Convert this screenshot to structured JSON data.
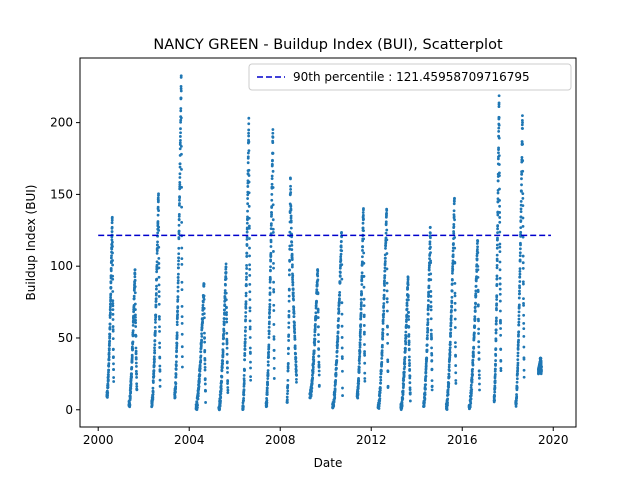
{
  "chart_data": {
    "type": "scatter",
    "title": "NANCY GREEN - Buildup Index (BUI), Scatterplot",
    "xlabel": "Date",
    "ylabel": "Buildup Index (BUI)",
    "xlim": [
      1999.2,
      2021.0
    ],
    "ylim": [
      -12,
      245
    ],
    "x_ticks": [
      2000,
      2004,
      2008,
      2012,
      2016,
      2020
    ],
    "y_ticks": [
      0,
      50,
      100,
      150,
      200
    ],
    "grid": false,
    "legend_position": "top-right",
    "point_color": "#1f77b4",
    "reference_line": {
      "label": "90th percentile : 121.45958709716795",
      "value": 121.45958709716795,
      "x_start": 2000.0,
      "x_end": 2019.9,
      "color": "#0000cc",
      "style": "dashed"
    },
    "seasons": [
      {
        "year": 2000,
        "start": 2000.38,
        "peak_time": 2000.62,
        "end": 2000.68,
        "base": 8,
        "peak": 135
      },
      {
        "year": 2001,
        "start": 2001.35,
        "peak_time": 2001.62,
        "end": 2001.7,
        "base": 2,
        "peak": 99
      },
      {
        "year": 2002,
        "start": 2002.35,
        "peak_time": 2002.65,
        "end": 2002.72,
        "base": 2,
        "peak": 153
      },
      {
        "year": 2003,
        "start": 2003.36,
        "peak_time": 2003.65,
        "end": 2003.7,
        "base": 8,
        "peak": 233
      },
      {
        "year": 2004,
        "start": 2004.3,
        "peak_time": 2004.65,
        "end": 2004.72,
        "base": 0,
        "peak": 89
      },
      {
        "year": 2005,
        "start": 2005.3,
        "peak_time": 2005.62,
        "end": 2005.7,
        "base": 0,
        "peak": 102
      },
      {
        "year": 2006,
        "start": 2006.35,
        "peak_time": 2006.62,
        "end": 2006.7,
        "base": 0,
        "peak": 204
      },
      {
        "year": 2007,
        "start": 2007.38,
        "peak_time": 2007.68,
        "end": 2007.74,
        "base": 2,
        "peak": 197
      },
      {
        "year": 2008,
        "start": 2008.3,
        "peak_time": 2008.45,
        "end": 2008.72,
        "base": 5,
        "peak": 162
      },
      {
        "year": 2009,
        "start": 2009.3,
        "peak_time": 2009.65,
        "end": 2009.72,
        "base": 8,
        "peak": 98
      },
      {
        "year": 2010,
        "start": 2010.3,
        "peak_time": 2010.7,
        "end": 2010.74,
        "base": 0,
        "peak": 125
      },
      {
        "year": 2011,
        "start": 2011.38,
        "peak_time": 2011.66,
        "end": 2011.72,
        "base": 8,
        "peak": 142
      },
      {
        "year": 2012,
        "start": 2012.3,
        "peak_time": 2012.68,
        "end": 2012.74,
        "base": 0,
        "peak": 141
      },
      {
        "year": 2013,
        "start": 2013.3,
        "peak_time": 2013.62,
        "end": 2013.72,
        "base": 0,
        "peak": 93
      },
      {
        "year": 2014,
        "start": 2014.3,
        "peak_time": 2014.6,
        "end": 2014.68,
        "base": 2,
        "peak": 128
      },
      {
        "year": 2015,
        "start": 2015.3,
        "peak_time": 2015.66,
        "end": 2015.72,
        "base": 0,
        "peak": 148
      },
      {
        "year": 2016,
        "start": 2016.3,
        "peak_time": 2016.68,
        "end": 2016.76,
        "base": 0,
        "peak": 120
      },
      {
        "year": 2017,
        "start": 2017.4,
        "peak_time": 2017.62,
        "end": 2017.7,
        "base": 5,
        "peak": 220
      },
      {
        "year": 2018,
        "start": 2018.35,
        "peak_time": 2018.65,
        "end": 2018.72,
        "base": 2,
        "peak": 206
      },
      {
        "year": 2019,
        "start": 2019.35,
        "peak_time": 2019.45,
        "end": 2019.48,
        "base": 25,
        "peak": 36
      }
    ]
  }
}
